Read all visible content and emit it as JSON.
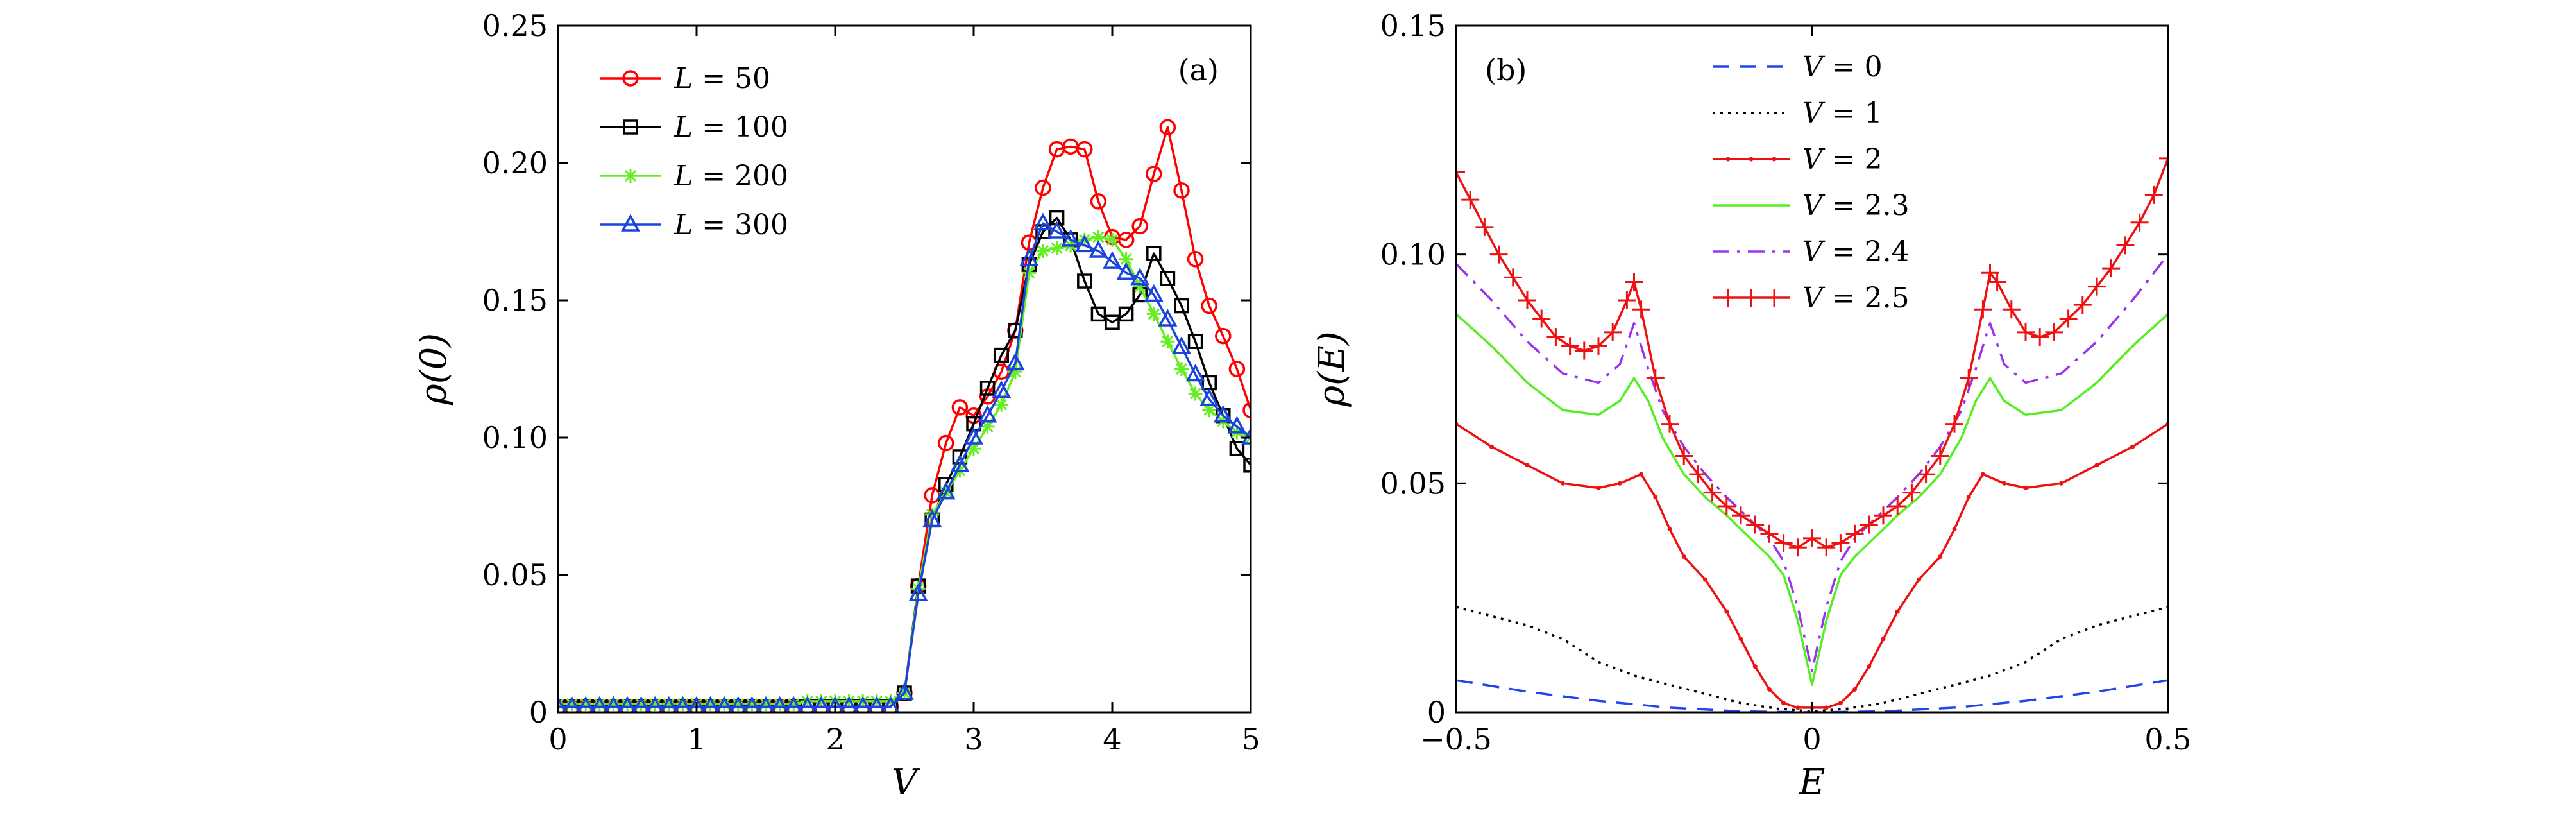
{
  "chart_data": [
    {
      "type": "line",
      "panel_label": "(a)",
      "xlabel": "V",
      "ylabel": "ρ(0)",
      "xlim": [
        0,
        5
      ],
      "ylim": [
        0,
        0.25
      ],
      "xticks": [
        0,
        1,
        2,
        3,
        4,
        5
      ],
      "xtick_labels": [
        "0",
        "1",
        "2",
        "3",
        "4",
        "5"
      ],
      "yticks": [
        0,
        0.05,
        0.1,
        0.15,
        0.2,
        0.25
      ],
      "ytick_labels": [
        "0",
        "0.05",
        "0.10",
        "0.15",
        "0.20",
        "0.25"
      ],
      "legend_position": "top-left",
      "series": [
        {
          "name": "L = 50",
          "var": "L",
          "val": "50",
          "color": "#ff0000",
          "marker": "circle",
          "x": [
            0,
            0.1,
            0.2,
            0.3,
            0.4,
            0.5,
            0.6,
            0.7,
            0.8,
            0.9,
            1.0,
            1.1,
            1.2,
            1.3,
            1.4,
            1.5,
            1.6,
            1.7,
            1.8,
            1.9,
            2.0,
            2.1,
            2.2,
            2.3,
            2.4,
            2.5,
            2.6,
            2.7,
            2.8,
            2.9,
            3.0,
            3.1,
            3.2,
            3.3,
            3.4,
            3.5,
            3.6,
            3.7,
            3.8,
            3.9,
            4.0,
            4.1,
            4.2,
            4.3,
            4.4,
            4.5,
            4.6,
            4.7,
            4.8,
            4.9,
            5.0
          ],
          "y": [
            0.002,
            0.002,
            0.002,
            0.002,
            0.002,
            0.002,
            0.002,
            0.002,
            0.002,
            0.002,
            0.002,
            0.002,
            0.002,
            0.002,
            0.002,
            0.002,
            0.002,
            0.002,
            0.002,
            0.002,
            0.002,
            0.002,
            0.002,
            0.002,
            0.002,
            0.007,
            0.046,
            0.079,
            0.098,
            0.111,
            0.108,
            0.115,
            0.124,
            0.139,
            0.171,
            0.191,
            0.205,
            0.206,
            0.205,
            0.186,
            0.173,
            0.172,
            0.177,
            0.196,
            0.213,
            0.19,
            0.165,
            0.148,
            0.137,
            0.125,
            0.11
          ]
        },
        {
          "name": "L = 100",
          "var": "L",
          "val": "100",
          "color": "#000000",
          "marker": "square",
          "x": [
            0,
            0.1,
            0.2,
            0.3,
            0.4,
            0.5,
            0.6,
            0.7,
            0.8,
            0.9,
            1.0,
            1.1,
            1.2,
            1.3,
            1.4,
            1.5,
            1.6,
            1.7,
            1.8,
            1.9,
            2.0,
            2.1,
            2.2,
            2.3,
            2.4,
            2.5,
            2.6,
            2.7,
            2.8,
            2.9,
            3.0,
            3.1,
            3.2,
            3.3,
            3.4,
            3.5,
            3.6,
            3.7,
            3.8,
            3.9,
            4.0,
            4.1,
            4.2,
            4.3,
            4.4,
            4.5,
            4.6,
            4.7,
            4.8,
            4.9,
            5.0
          ],
          "y": [
            0.002,
            0.002,
            0.002,
            0.002,
            0.002,
            0.002,
            0.002,
            0.002,
            0.002,
            0.002,
            0.002,
            0.002,
            0.002,
            0.002,
            0.002,
            0.002,
            0.002,
            0.002,
            0.002,
            0.002,
            0.002,
            0.002,
            0.002,
            0.002,
            0.002,
            0.007,
            0.046,
            0.07,
            0.083,
            0.093,
            0.105,
            0.118,
            0.13,
            0.139,
            0.163,
            0.175,
            0.18,
            0.172,
            0.157,
            0.145,
            0.142,
            0.145,
            0.152,
            0.167,
            0.158,
            0.148,
            0.135,
            0.12,
            0.108,
            0.096,
            0.09
          ]
        },
        {
          "name": "L = 200",
          "var": "L",
          "val": "200",
          "color": "#66ee22",
          "marker": "asterisk",
          "x": [
            0,
            0.1,
            0.2,
            0.3,
            0.4,
            0.5,
            0.6,
            0.7,
            0.8,
            0.9,
            1.0,
            1.1,
            1.2,
            1.3,
            1.4,
            1.5,
            1.6,
            1.7,
            1.8,
            1.9,
            2.0,
            2.1,
            2.2,
            2.3,
            2.4,
            2.5,
            2.6,
            2.7,
            2.8,
            2.9,
            3.0,
            3.1,
            3.2,
            3.3,
            3.4,
            3.5,
            3.6,
            3.7,
            3.8,
            3.9,
            4.0,
            4.1,
            4.2,
            4.3,
            4.4,
            4.5,
            4.6,
            4.7,
            4.8,
            4.9,
            5.0
          ],
          "y": [
            0.003,
            0.003,
            0.003,
            0.003,
            0.003,
            0.003,
            0.003,
            0.003,
            0.003,
            0.003,
            0.003,
            0.003,
            0.003,
            0.003,
            0.003,
            0.003,
            0.003,
            0.003,
            0.004,
            0.004,
            0.004,
            0.004,
            0.004,
            0.004,
            0.004,
            0.007,
            0.045,
            0.072,
            0.08,
            0.088,
            0.096,
            0.104,
            0.112,
            0.124,
            0.16,
            0.168,
            0.169,
            0.17,
            0.172,
            0.173,
            0.172,
            0.165,
            0.155,
            0.145,
            0.135,
            0.125,
            0.116,
            0.11,
            0.106,
            0.102,
            0.1
          ]
        },
        {
          "name": "L = 300",
          "var": "L",
          "val": "300",
          "color": "#1a44dd",
          "marker": "triangle",
          "x": [
            0,
            0.1,
            0.2,
            0.3,
            0.4,
            0.5,
            0.6,
            0.7,
            0.8,
            0.9,
            1.0,
            1.1,
            1.2,
            1.3,
            1.4,
            1.5,
            1.6,
            1.7,
            1.8,
            1.9,
            2.0,
            2.1,
            2.2,
            2.3,
            2.4,
            2.5,
            2.6,
            2.7,
            2.8,
            2.9,
            3.0,
            3.1,
            3.2,
            3.3,
            3.4,
            3.5,
            3.6,
            3.7,
            3.8,
            3.9,
            4.0,
            4.1,
            4.2,
            4.3,
            4.4,
            4.5,
            4.6,
            4.7,
            4.8,
            4.9,
            5.0
          ],
          "y": [
            0.002,
            0.002,
            0.002,
            0.002,
            0.002,
            0.002,
            0.002,
            0.002,
            0.002,
            0.002,
            0.002,
            0.002,
            0.002,
            0.002,
            0.002,
            0.002,
            0.002,
            0.002,
            0.002,
            0.002,
            0.002,
            0.002,
            0.002,
            0.002,
            0.002,
            0.007,
            0.043,
            0.07,
            0.08,
            0.09,
            0.1,
            0.108,
            0.117,
            0.127,
            0.165,
            0.178,
            0.175,
            0.172,
            0.17,
            0.168,
            0.164,
            0.16,
            0.158,
            0.152,
            0.143,
            0.133,
            0.123,
            0.114,
            0.108,
            0.104,
            0.1
          ]
        }
      ]
    },
    {
      "type": "line",
      "panel_label": "(b)",
      "xlabel": "E",
      "ylabel": "ρ(E)",
      "xlim": [
        -0.5,
        0.5
      ],
      "ylim": [
        0,
        0.15
      ],
      "xticks": [
        -0.5,
        0,
        0.5
      ],
      "xtick_labels": [
        "−0.5",
        "0",
        "0.5"
      ],
      "yticks": [
        0,
        0.05,
        0.1,
        0.15
      ],
      "ytick_labels": [
        "0",
        "0.05",
        "0.10",
        "0.15"
      ],
      "legend_position": "top-center",
      "series": [
        {
          "name": "V = 0",
          "var": "V",
          "val": "0",
          "color": "#2244ee",
          "style": "dashed",
          "x": [
            -0.5,
            -0.4,
            -0.3,
            -0.2,
            -0.1,
            0,
            0.1,
            0.2,
            0.3,
            0.4,
            0.5
          ],
          "y": [
            0.007,
            0.0045,
            0.0025,
            0.001,
            0.0002,
            0,
            0.0002,
            0.001,
            0.0025,
            0.0045,
            0.007
          ]
        },
        {
          "name": "V = 1",
          "var": "V",
          "val": "1",
          "color": "#000000",
          "style": "dotted",
          "x": [
            -0.5,
            -0.45,
            -0.4,
            -0.35,
            -0.3,
            -0.25,
            -0.2,
            -0.15,
            -0.1,
            -0.05,
            0,
            0.05,
            0.1,
            0.15,
            0.2,
            0.25,
            0.3,
            0.35,
            0.4,
            0.45,
            0.5
          ],
          "y": [
            0.023,
            0.021,
            0.019,
            0.016,
            0.011,
            0.008,
            0.006,
            0.004,
            0.002,
            0.0008,
            0.0002,
            0.0008,
            0.002,
            0.004,
            0.006,
            0.008,
            0.011,
            0.016,
            0.019,
            0.021,
            0.023
          ]
        },
        {
          "name": "V = 2",
          "var": "V",
          "val": "2",
          "color": "#ee1111",
          "style": "solid-dot",
          "x": [
            -0.5,
            -0.45,
            -0.4,
            -0.35,
            -0.3,
            -0.27,
            -0.24,
            -0.22,
            -0.2,
            -0.18,
            -0.15,
            -0.12,
            -0.1,
            -0.08,
            -0.06,
            -0.04,
            -0.02,
            0,
            0.02,
            0.04,
            0.06,
            0.08,
            0.1,
            0.12,
            0.15,
            0.18,
            0.2,
            0.22,
            0.24,
            0.27,
            0.3,
            0.35,
            0.4,
            0.45,
            0.5
          ],
          "y": [
            0.063,
            0.058,
            0.054,
            0.05,
            0.049,
            0.05,
            0.052,
            0.047,
            0.04,
            0.034,
            0.029,
            0.022,
            0.016,
            0.01,
            0.005,
            0.002,
            0.001,
            0.001,
            0.001,
            0.002,
            0.005,
            0.01,
            0.016,
            0.022,
            0.029,
            0.034,
            0.04,
            0.047,
            0.052,
            0.05,
            0.049,
            0.05,
            0.054,
            0.058,
            0.063
          ]
        },
        {
          "name": "V = 2.3",
          "var": "V",
          "val": "2.3",
          "color": "#55ee22",
          "style": "solid",
          "x": [
            -0.5,
            -0.45,
            -0.4,
            -0.35,
            -0.3,
            -0.27,
            -0.25,
            -0.23,
            -0.21,
            -0.18,
            -0.15,
            -0.12,
            -0.1,
            -0.08,
            -0.06,
            -0.04,
            -0.02,
            0,
            0.02,
            0.04,
            0.06,
            0.08,
            0.1,
            0.12,
            0.15,
            0.18,
            0.21,
            0.23,
            0.25,
            0.27,
            0.3,
            0.35,
            0.4,
            0.45,
            0.5
          ],
          "y": [
            0.087,
            0.08,
            0.072,
            0.066,
            0.065,
            0.068,
            0.073,
            0.068,
            0.06,
            0.052,
            0.047,
            0.043,
            0.04,
            0.037,
            0.034,
            0.03,
            0.02,
            0.006,
            0.02,
            0.03,
            0.034,
            0.037,
            0.04,
            0.043,
            0.047,
            0.052,
            0.06,
            0.068,
            0.073,
            0.068,
            0.065,
            0.066,
            0.072,
            0.08,
            0.087
          ]
        },
        {
          "name": "V = 2.4",
          "var": "V",
          "val": "2.4",
          "color": "#9933ee",
          "style": "dash-dot",
          "x": [
            -0.5,
            -0.45,
            -0.4,
            -0.35,
            -0.3,
            -0.27,
            -0.25,
            -0.23,
            -0.21,
            -0.18,
            -0.15,
            -0.12,
            -0.1,
            -0.08,
            -0.06,
            -0.04,
            -0.02,
            0,
            0.02,
            0.04,
            0.06,
            0.08,
            0.1,
            0.12,
            0.15,
            0.18,
            0.21,
            0.23,
            0.25,
            0.27,
            0.3,
            0.35,
            0.4,
            0.45,
            0.5
          ],
          "y": [
            0.098,
            0.09,
            0.081,
            0.074,
            0.072,
            0.076,
            0.085,
            0.075,
            0.066,
            0.058,
            0.052,
            0.047,
            0.044,
            0.041,
            0.038,
            0.033,
            0.023,
            0.009,
            0.023,
            0.033,
            0.038,
            0.041,
            0.044,
            0.047,
            0.052,
            0.058,
            0.066,
            0.075,
            0.085,
            0.076,
            0.072,
            0.074,
            0.081,
            0.09,
            0.1
          ]
        },
        {
          "name": "V = 2.5",
          "var": "V",
          "val": "2.5",
          "color": "#ee1111",
          "style": "solid-plus",
          "x": [
            -0.5,
            -0.48,
            -0.46,
            -0.44,
            -0.42,
            -0.4,
            -0.38,
            -0.36,
            -0.34,
            -0.32,
            -0.3,
            -0.28,
            -0.26,
            -0.25,
            -0.24,
            -0.22,
            -0.2,
            -0.18,
            -0.16,
            -0.14,
            -0.12,
            -0.1,
            -0.08,
            -0.06,
            -0.04,
            -0.02,
            0,
            0.02,
            0.04,
            0.06,
            0.08,
            0.1,
            0.12,
            0.14,
            0.16,
            0.18,
            0.2,
            0.22,
            0.24,
            0.25,
            0.26,
            0.28,
            0.3,
            0.32,
            0.34,
            0.36,
            0.38,
            0.4,
            0.42,
            0.44,
            0.46,
            0.48,
            0.5
          ],
          "y": [
            0.118,
            0.112,
            0.106,
            0.1,
            0.095,
            0.09,
            0.086,
            0.082,
            0.08,
            0.079,
            0.08,
            0.083,
            0.09,
            0.094,
            0.088,
            0.073,
            0.063,
            0.056,
            0.052,
            0.048,
            0.045,
            0.043,
            0.041,
            0.039,
            0.037,
            0.036,
            0.038,
            0.036,
            0.037,
            0.039,
            0.041,
            0.043,
            0.045,
            0.048,
            0.052,
            0.056,
            0.063,
            0.073,
            0.088,
            0.096,
            0.094,
            0.088,
            0.083,
            0.082,
            0.083,
            0.086,
            0.089,
            0.093,
            0.097,
            0.102,
            0.107,
            0.113,
            0.121
          ]
        }
      ]
    }
  ]
}
